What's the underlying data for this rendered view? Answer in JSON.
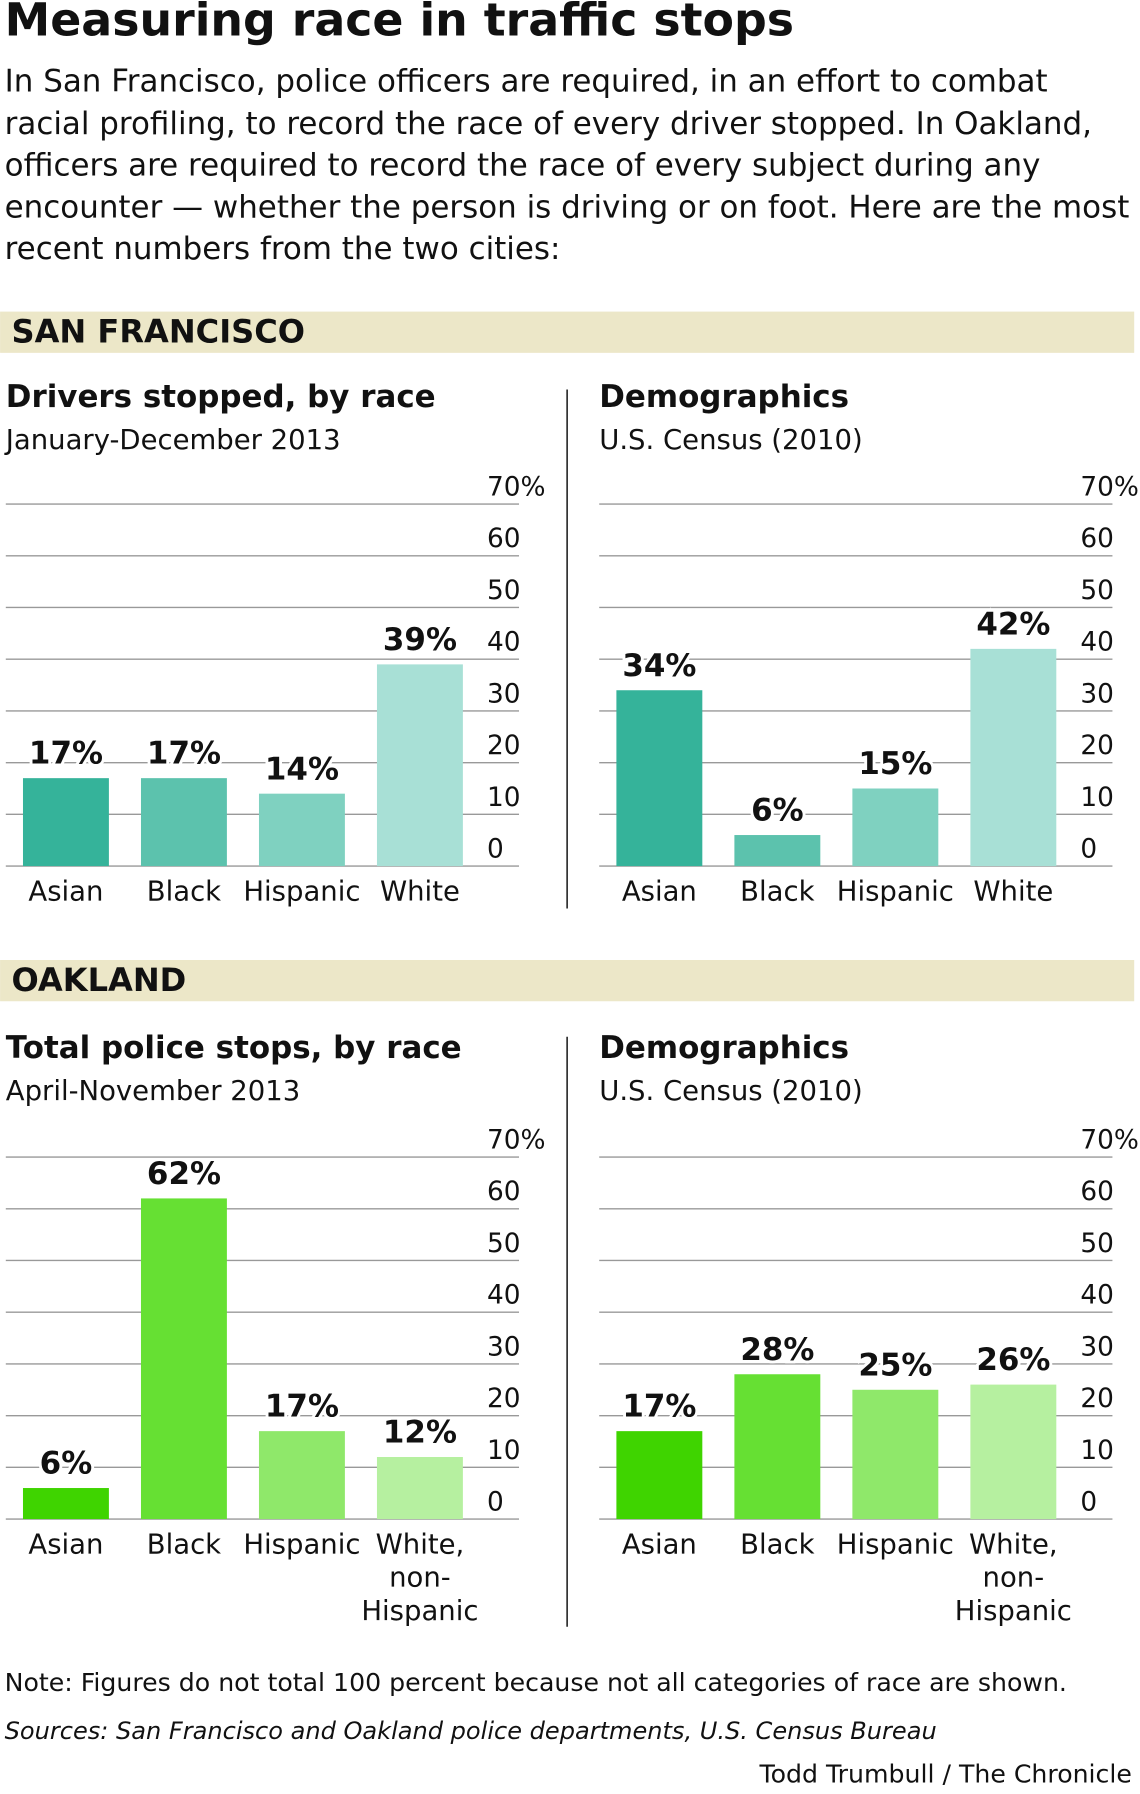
{
  "title": "Measuring race in traffic stops",
  "intro": "In San Francisco, police officers are required, in an effort to combat racial profiling, to record the race of every driver stopped. In Oakland, officers are required to record the race of every subject during any encounter — whether the person is driving or on foot. Here are the most recent numbers from the two cities:",
  "sections": [
    "SAN FRANCISCO",
    "OAKLAND"
  ],
  "chart_data": [
    {
      "type": "bar",
      "title": "Drivers stopped, by race",
      "subtitle": "January-December 2013",
      "categories": [
        "Asian",
        "Black",
        "Hispanic",
        "White"
      ],
      "values": [
        17,
        17,
        14,
        39
      ],
      "value_labels": [
        "17%",
        "17%",
        "14%",
        "39%"
      ],
      "colors": [
        "#35b39a",
        "#5cc2ad",
        "#7fd1c0",
        "#a8e0d6"
      ],
      "ylim": [
        0,
        70
      ],
      "yticks": [
        0,
        10,
        20,
        30,
        40,
        50,
        60,
        {
          "value": 70,
          "label": "70%"
        }
      ],
      "grid": true
    },
    {
      "type": "bar",
      "title": "Demographics",
      "subtitle": "U.S. Census (2010)",
      "categories": [
        "Asian",
        "Black",
        "Hispanic",
        "White"
      ],
      "values": [
        34,
        6,
        15,
        42
      ],
      "value_labels": [
        "34%",
        "6%",
        "15%",
        "42%"
      ],
      "colors": [
        "#35b39a",
        "#5cc2ad",
        "#7fd1c0",
        "#a8e0d6"
      ],
      "ylim": [
        0,
        70
      ],
      "yticks": [
        0,
        10,
        20,
        30,
        40,
        50,
        60,
        {
          "value": 70,
          "label": "70%"
        }
      ],
      "grid": true
    },
    {
      "type": "bar",
      "title": "Total police stops, by race",
      "subtitle": "April-November 2013",
      "categories": [
        "Asian",
        "Black",
        "Hispanic",
        "White, non-Hispanic"
      ],
      "values": [
        6,
        62,
        17,
        12
      ],
      "value_labels": [
        "6%",
        "62%",
        "17%",
        "12%"
      ],
      "colors": [
        "#3fd400",
        "#66e033",
        "#8fe86a",
        "#b6f0a0"
      ],
      "ylim": [
        0,
        70
      ],
      "yticks": [
        0,
        10,
        20,
        30,
        40,
        50,
        60,
        {
          "value": 70,
          "label": "70%"
        }
      ],
      "grid": true
    },
    {
      "type": "bar",
      "title": "Demographics",
      "subtitle": "U.S. Census (2010)",
      "categories": [
        "Asian",
        "Black",
        "Hispanic",
        "White, non-Hispanic"
      ],
      "values": [
        17,
        28,
        25,
        26
      ],
      "value_labels": [
        "17%",
        "28%",
        "25%",
        "26%"
      ],
      "colors": [
        "#3fd400",
        "#66e033",
        "#8fe86a",
        "#b6f0a0"
      ],
      "ylim": [
        0,
        70
      ],
      "yticks": [
        0,
        10,
        20,
        30,
        40,
        50,
        60,
        {
          "value": 70,
          "label": "70%"
        }
      ],
      "grid": true
    }
  ],
  "note": "Note: Figures do not total 100 percent because not all categories of race are shown.",
  "sources": "Sources: San Francisco and Oakland police departments, U.S. Census Bureau",
  "credit": "Todd Trumbull / The Chronicle"
}
